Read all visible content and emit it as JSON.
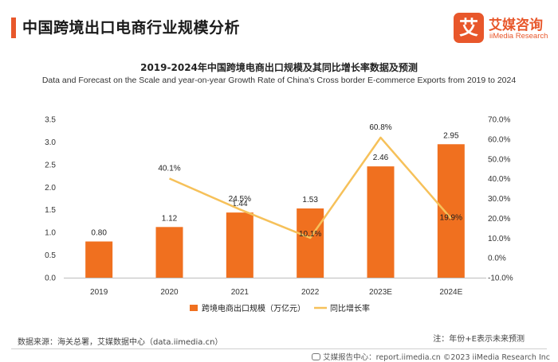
{
  "header": {
    "title": "中国跨境出口电商行业规模分析"
  },
  "logo": {
    "mark": "艾",
    "name_cn": "艾媒咨询",
    "name_en": "iiMedia Research"
  },
  "colors": {
    "accent": "#e8572b",
    "bar": "#f0701f",
    "line": "#f6c15a"
  },
  "chart_data": {
    "type": "bar",
    "title": "2019-2024年中国跨境电商出口规模及其同比增长率数据及预测",
    "subtitle": "Data and Forecast on the Scale and year-on-year Growth Rate of China's Cross border E-commerce Exports from 2019 to 2024",
    "categories": [
      "2019",
      "2020",
      "2021",
      "2022",
      "2023E",
      "2024E"
    ],
    "series": [
      {
        "name": "跨境电商出口规模（万亿元）",
        "type": "bar",
        "axis": "left",
        "values": [
          0.8,
          1.12,
          1.44,
          1.53,
          2.46,
          2.95
        ],
        "labels": [
          "0.80",
          "1.12",
          "1.44",
          "1.53",
          "2.46",
          "2.95"
        ]
      },
      {
        "name": "同比增长率",
        "type": "line",
        "axis": "right",
        "values": [
          null,
          40.1,
          24.5,
          10.1,
          60.8,
          19.9
        ],
        "labels": [
          "",
          "40.1%",
          "24.5%",
          "10.1%",
          "60.8%",
          "19.9%"
        ]
      }
    ],
    "y_left": {
      "min": 0,
      "max": 3.5,
      "ticks": [
        "0.0",
        "0.5",
        "1.0",
        "1.5",
        "2.0",
        "2.5",
        "3.0",
        "3.5"
      ]
    },
    "y_right": {
      "min": -10,
      "max": 70,
      "ticks": [
        "-10.0%",
        "0.0%",
        "10.0%",
        "20.0%",
        "30.0%",
        "40.0%",
        "50.0%",
        "60.0%",
        "70.0%"
      ]
    },
    "grid": false,
    "legend_position": "bottom"
  },
  "footer": {
    "source": "数据来源：海关总署，艾媒数据中心（data.iimedia.cn）",
    "note": "注：年份+E表示未来预测",
    "credit": "艾媒报告中心：report.iimedia.cn   ©2023  iiMedia Research  Inc"
  }
}
